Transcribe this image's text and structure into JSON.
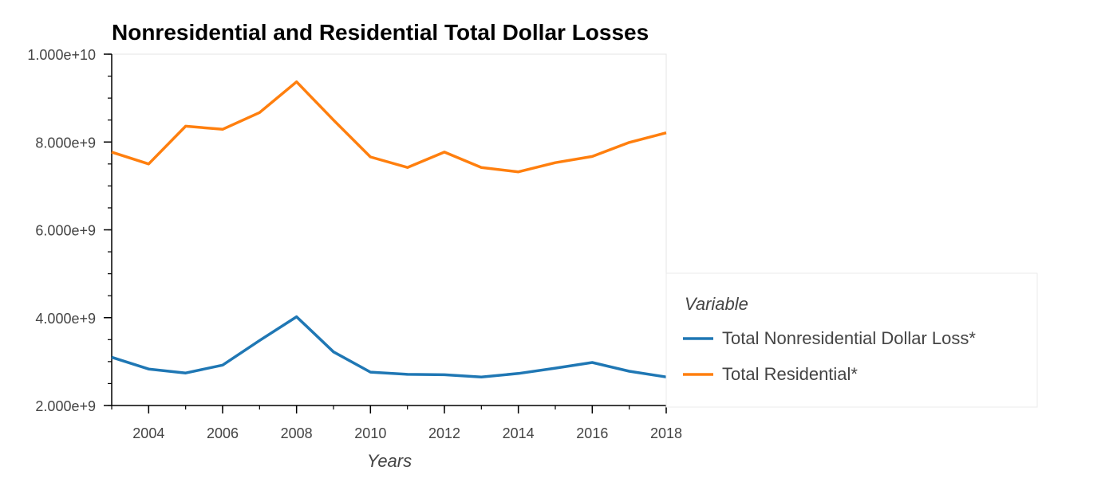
{
  "chart_data": {
    "type": "line",
    "title": "Nonresidential and Residential Total Dollar Losses",
    "xlabel": "Years",
    "ylabel": "",
    "x": [
      2003,
      2004,
      2005,
      2006,
      2007,
      2008,
      2009,
      2010,
      2011,
      2012,
      2013,
      2014,
      2015,
      2016,
      2017,
      2018
    ],
    "xlim": [
      2003,
      2018
    ],
    "ylim": [
      2000000000,
      10000000000
    ],
    "x_ticks": [
      2004,
      2006,
      2008,
      2010,
      2012,
      2014,
      2016,
      2018
    ],
    "x_tick_labels": [
      "2004",
      "2006",
      "2008",
      "2010",
      "2012",
      "2014",
      "2016",
      "2018"
    ],
    "y_ticks": [
      2000000000,
      4000000000,
      6000000000,
      8000000000,
      10000000000
    ],
    "y_tick_labels": [
      "2.000e+9",
      "4.000e+9",
      "6.000e+9",
      "8.000e+9",
      "1.000e+10"
    ],
    "grid": false,
    "legend": {
      "title": "Variable",
      "placement": "right"
    },
    "series": [
      {
        "name": "Total Nonresidential Dollar Loss*",
        "color": "#1f77b4",
        "values": [
          3100000000,
          2830000000,
          2740000000,
          2920000000,
          3480000000,
          4020000000,
          3220000000,
          2760000000,
          2710000000,
          2700000000,
          2650000000,
          2730000000,
          2850000000,
          2980000000,
          2780000000,
          2650000000
        ]
      },
      {
        "name": "Total Residential*",
        "color": "#ff7f0e",
        "values": [
          7770000000,
          7500000000,
          8360000000,
          8290000000,
          8670000000,
          9370000000,
          8500000000,
          7660000000,
          7420000000,
          7770000000,
          7420000000,
          7320000000,
          7530000000,
          7670000000,
          7990000000,
          8210000000
        ]
      }
    ]
  }
}
